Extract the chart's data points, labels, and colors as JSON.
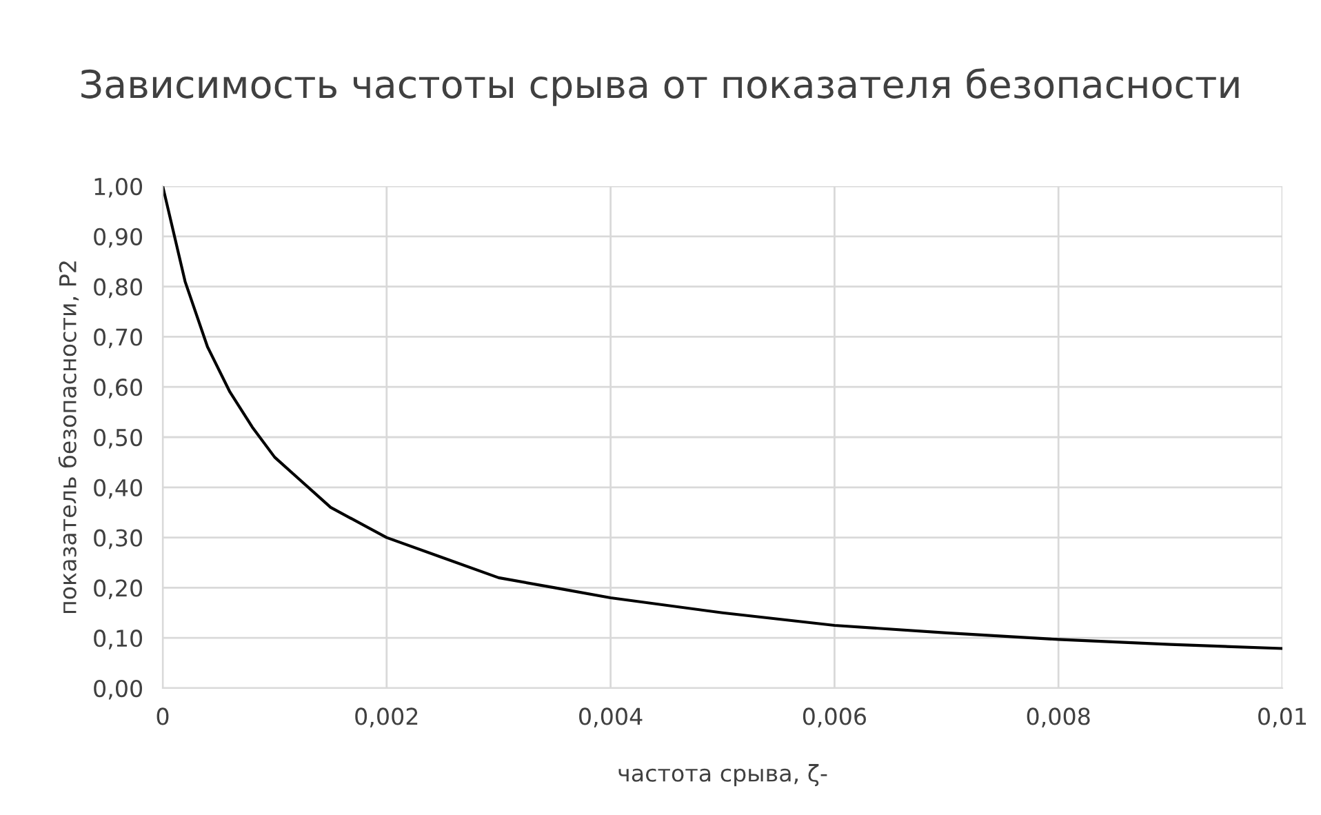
{
  "chart_data": {
    "type": "line",
    "title": "Зависимость частоты срыва от показателя безопасности",
    "xlabel": "частота срыва, ζ-",
    "ylabel": "показатель безопасности, P2",
    "x": [
      0,
      0.0002,
      0.0004,
      0.0006,
      0.0008,
      0.001,
      0.0012,
      0.0015,
      0.002,
      0.0025,
      0.003,
      0.0035,
      0.004,
      0.005,
      0.006,
      0.007,
      0.008,
      0.009,
      0.01
    ],
    "series": [
      {
        "color": "#000000",
        "values": [
          1.0,
          0.81,
          0.68,
          0.59,
          0.52,
          0.46,
          0.42,
          0.36,
          0.3,
          0.26,
          0.22,
          0.2,
          0.18,
          0.15,
          0.125,
          0.11,
          0.097,
          0.087,
          0.079
        ]
      }
    ],
    "xlim": [
      0,
      0.01
    ],
    "ylim": [
      0,
      1
    ],
    "xticks": [
      {
        "value": 0,
        "label": "0"
      },
      {
        "value": 0.002,
        "label": "0,002"
      },
      {
        "value": 0.004,
        "label": "0,004"
      },
      {
        "value": 0.006,
        "label": "0,006"
      },
      {
        "value": 0.008,
        "label": "0,008"
      },
      {
        "value": 0.01,
        "label": "0,01"
      }
    ],
    "yticks": [
      {
        "value": 0,
        "label": "0,00"
      },
      {
        "value": 0.1,
        "label": "0,10"
      },
      {
        "value": 0.2,
        "label": "0,20"
      },
      {
        "value": 0.3,
        "label": "0,30"
      },
      {
        "value": 0.4,
        "label": "0,40"
      },
      {
        "value": 0.5,
        "label": "0,50"
      },
      {
        "value": 0.6,
        "label": "0,60"
      },
      {
        "value": 0.7,
        "label": "0,70"
      },
      {
        "value": 0.8,
        "label": "0,80"
      },
      {
        "value": 0.9,
        "label": "0,90"
      },
      {
        "value": 1.0,
        "label": "1,00"
      }
    ],
    "grid": true,
    "marker": "none",
    "line_style": "solid"
  }
}
